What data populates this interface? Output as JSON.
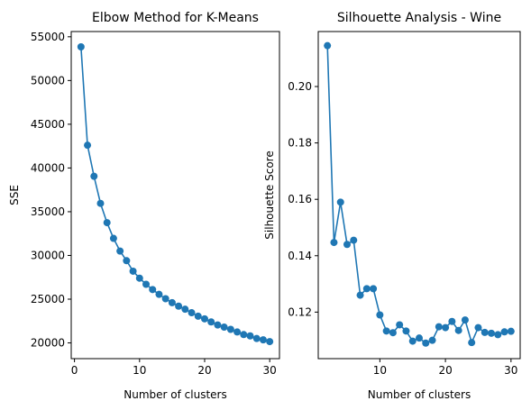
{
  "chart_data": [
    {
      "type": "line",
      "title": "Elbow Method for K-Means",
      "xlabel": "Number of clusters",
      "ylabel": "SSE",
      "xlim": [
        -0.5,
        31.5
      ],
      "ylim": [
        18200,
        55600
      ],
      "xticks": [
        0,
        10,
        20,
        30
      ],
      "yticks": [
        20000,
        25000,
        30000,
        35000,
        40000,
        45000,
        50000,
        55000
      ],
      "grid": false,
      "marker": "circle",
      "color": "#1f77b4",
      "x": [
        1,
        2,
        3,
        4,
        5,
        6,
        7,
        8,
        9,
        10,
        11,
        12,
        13,
        14,
        15,
        16,
        17,
        18,
        19,
        20,
        21,
        22,
        23,
        24,
        25,
        26,
        27,
        28,
        29,
        30
      ],
      "y": [
        53850,
        42600,
        39050,
        35950,
        33750,
        31950,
        30500,
        29400,
        28200,
        27400,
        26700,
        26100,
        25550,
        25050,
        24600,
        24200,
        23850,
        23450,
        23050,
        22750,
        22400,
        22050,
        21800,
        21550,
        21250,
        20950,
        20800,
        20500,
        20350,
        20150
      ]
    },
    {
      "type": "line",
      "title": "Silhouette Analysis - Wine",
      "xlabel": "Number of clusters",
      "ylabel": "Silhouette Score",
      "xlim": [
        0.6,
        31.4
      ],
      "ylim": [
        0.1035,
        0.2195
      ],
      "xticks": [
        10,
        20,
        30
      ],
      "yticks": [
        0.12,
        0.14,
        0.16,
        0.18,
        0.2
      ],
      "grid": false,
      "marker": "circle",
      "color": "#1f77b4",
      "x": [
        2,
        3,
        4,
        5,
        6,
        7,
        8,
        9,
        10,
        11,
        12,
        13,
        14,
        15,
        16,
        17,
        18,
        19,
        20,
        21,
        22,
        23,
        24,
        25,
        26,
        27,
        28,
        29,
        30
      ],
      "y": [
        0.2145,
        0.1447,
        0.159,
        0.144,
        0.1455,
        0.126,
        0.1283,
        0.1283,
        0.119,
        0.1133,
        0.1127,
        0.1155,
        0.1133,
        0.1097,
        0.1108,
        0.109,
        0.11,
        0.1148,
        0.1145,
        0.1167,
        0.1135,
        0.1172,
        0.1092,
        0.1145,
        0.1128,
        0.1125,
        0.112,
        0.113,
        0.1132
      ]
    }
  ]
}
